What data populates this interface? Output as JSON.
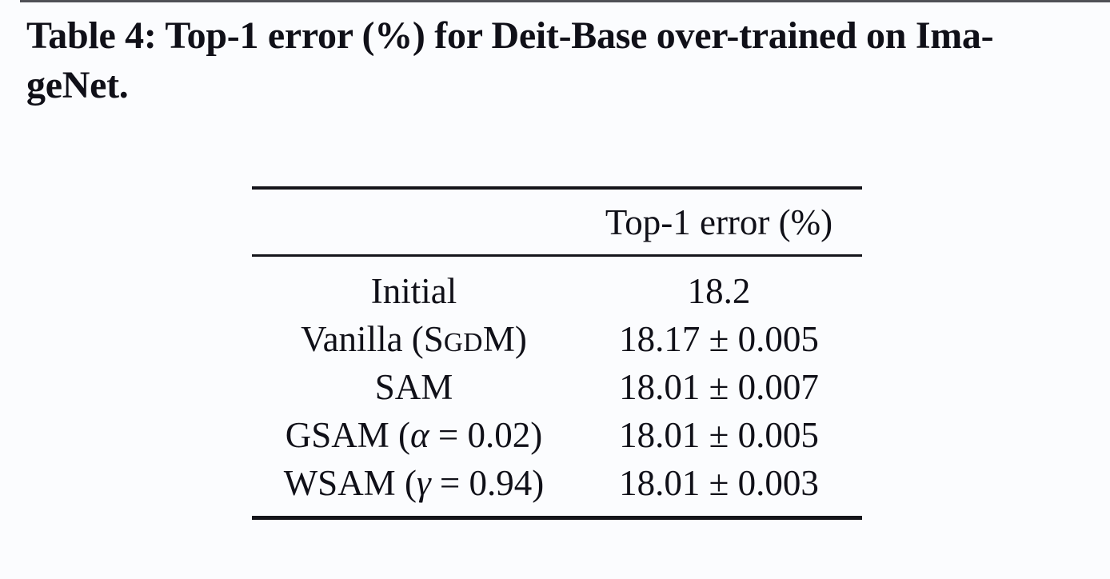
{
  "meta": {
    "background": "#fbfcfe",
    "ink": "#101018",
    "rule_color": "#15151b"
  },
  "caption": {
    "full_text": "Table 4: Top-1 error (%) for Deit-Base over-trained on ImageNet.",
    "lines": [
      "Table 4: Top-1 error (%) for Deit-Base over-trained on Ima-",
      "geNet."
    ]
  },
  "table": {
    "header": {
      "method_col": "",
      "value_col": "Top-1 error (%)"
    },
    "rows": [
      {
        "method": "Initial",
        "method_parts": [
          {
            "t": "Initial"
          }
        ],
        "value": "18.2"
      },
      {
        "method": "Vanilla (SGDM)",
        "method_parts": [
          {
            "t": "Vanilla (S"
          },
          {
            "t": "GD",
            "sc": true
          },
          {
            "t": "M)"
          }
        ],
        "value": "18.17 ± 0.005"
      },
      {
        "method": "SAM",
        "method_parts": [
          {
            "t": "SAM"
          }
        ],
        "value": "18.01 ± 0.007"
      },
      {
        "method": "GSAM (α = 0.02)",
        "method_parts": [
          {
            "t": "GSAM ("
          },
          {
            "t": "α",
            "it": true
          },
          {
            "t": " = 0.02)"
          }
        ],
        "value": "18.01 ± 0.005"
      },
      {
        "method": "WSAM (γ = 0.94)",
        "method_parts": [
          {
            "t": "WSAM ("
          },
          {
            "t": "γ",
            "it": true
          },
          {
            "t": " = 0.94)"
          }
        ],
        "value": "18.01 ± 0.003"
      }
    ]
  },
  "chart_data": {
    "type": "table",
    "title": "Table 4: Top-1 error (%) for Deit-Base over-trained on ImageNet.",
    "columns": [
      "",
      "Top-1 error (%)"
    ],
    "rows": [
      [
        "Initial",
        "18.2"
      ],
      [
        "Vanilla (SGDM)",
        "18.17 ± 0.005"
      ],
      [
        "SAM",
        "18.01 ± 0.007"
      ],
      [
        "GSAM (α = 0.02)",
        "18.01 ± 0.005"
      ],
      [
        "WSAM (γ = 0.94)",
        "18.01 ± 0.003"
      ]
    ]
  }
}
